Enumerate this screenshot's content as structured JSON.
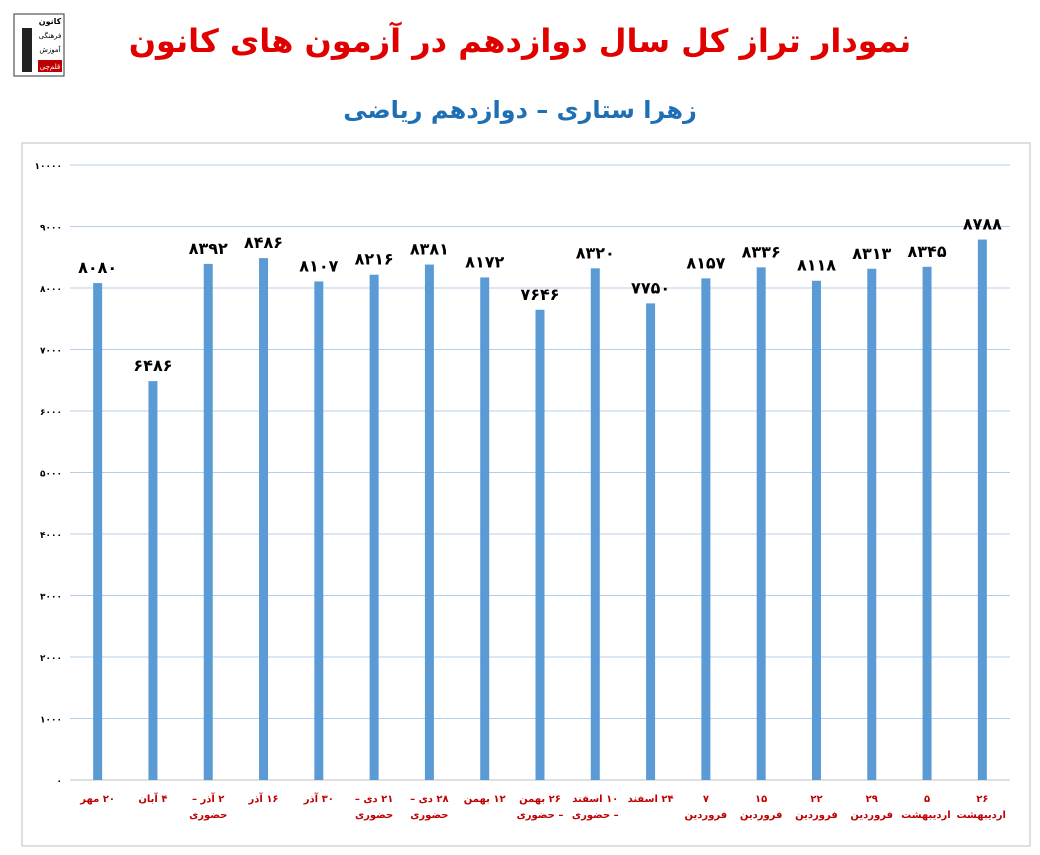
{
  "logo": {
    "lines": [
      "کانون",
      "فرهنگی",
      "آموزش",
      "قلم‌چی"
    ]
  },
  "chart_data": {
    "type": "bar",
    "title": "نمودار تراز کل سال دوازدهم در آزمون های کانون",
    "subtitle": "زهرا ستاری – دوازدهم ریاضی",
    "categories": [
      "۲۰ مهر",
      "۴ آبان",
      "۲ آذر – حضوری",
      "۱۶ آذر",
      "۳۰ آذر",
      "۲۱ دی – حضوری",
      "۲۸ دی – حضوری",
      "۱۲ بهمن",
      "۲۶ بهمن – حضوری",
      "۱۰ اسفند – حضوری",
      "۲۴ اسفند",
      "۷ فروردین",
      "۱۵ فروردین",
      "۲۲ فروردین",
      "۲۹ فروردین",
      "۵ اردیبهشت",
      "۲۶ اردیبهشت"
    ],
    "values": [
      8080,
      6486,
      8392,
      8486,
      8107,
      8216,
      8381,
      8172,
      7646,
      8320,
      7750,
      8157,
      8336,
      8118,
      8313,
      8345,
      8788
    ],
    "value_labels": [
      "۸۰۸۰",
      "۶۴۸۶",
      "۸۳۹۲",
      "۸۴۸۶",
      "۸۱۰۷",
      "۸۲۱۶",
      "۸۳۸۱",
      "۸۱۷۲",
      "۷۶۴۶",
      "۸۳۲۰",
      "۷۷۵۰",
      "۸۱۵۷",
      "۸۳۳۶",
      "۸۱۱۸",
      "۸۳۱۳",
      "۸۳۴۵",
      "۸۷۸۸"
    ],
    "color": "#5b9bd5",
    "ylim": [
      0,
      10000
    ],
    "yticks": [
      {
        "value": 0,
        "label": "۰"
      },
      {
        "value": 1000,
        "label": "۱۰۰۰"
      },
      {
        "value": 2000,
        "label": "۲۰۰۰"
      },
      {
        "value": 3000,
        "label": "۳۰۰۰"
      },
      {
        "value": 4000,
        "label": "۴۰۰۰"
      },
      {
        "value": 5000,
        "label": "۵۰۰۰"
      },
      {
        "value": 6000,
        "label": "۶۰۰۰"
      },
      {
        "value": 7000,
        "label": "۷۰۰۰"
      },
      {
        "value": 8000,
        "label": "۸۰۰۰"
      },
      {
        "value": 9000,
        "label": "۹۰۰۰"
      },
      {
        "value": 10000,
        "label": "۱۰۰۰۰"
      }
    ],
    "grid": true
  }
}
